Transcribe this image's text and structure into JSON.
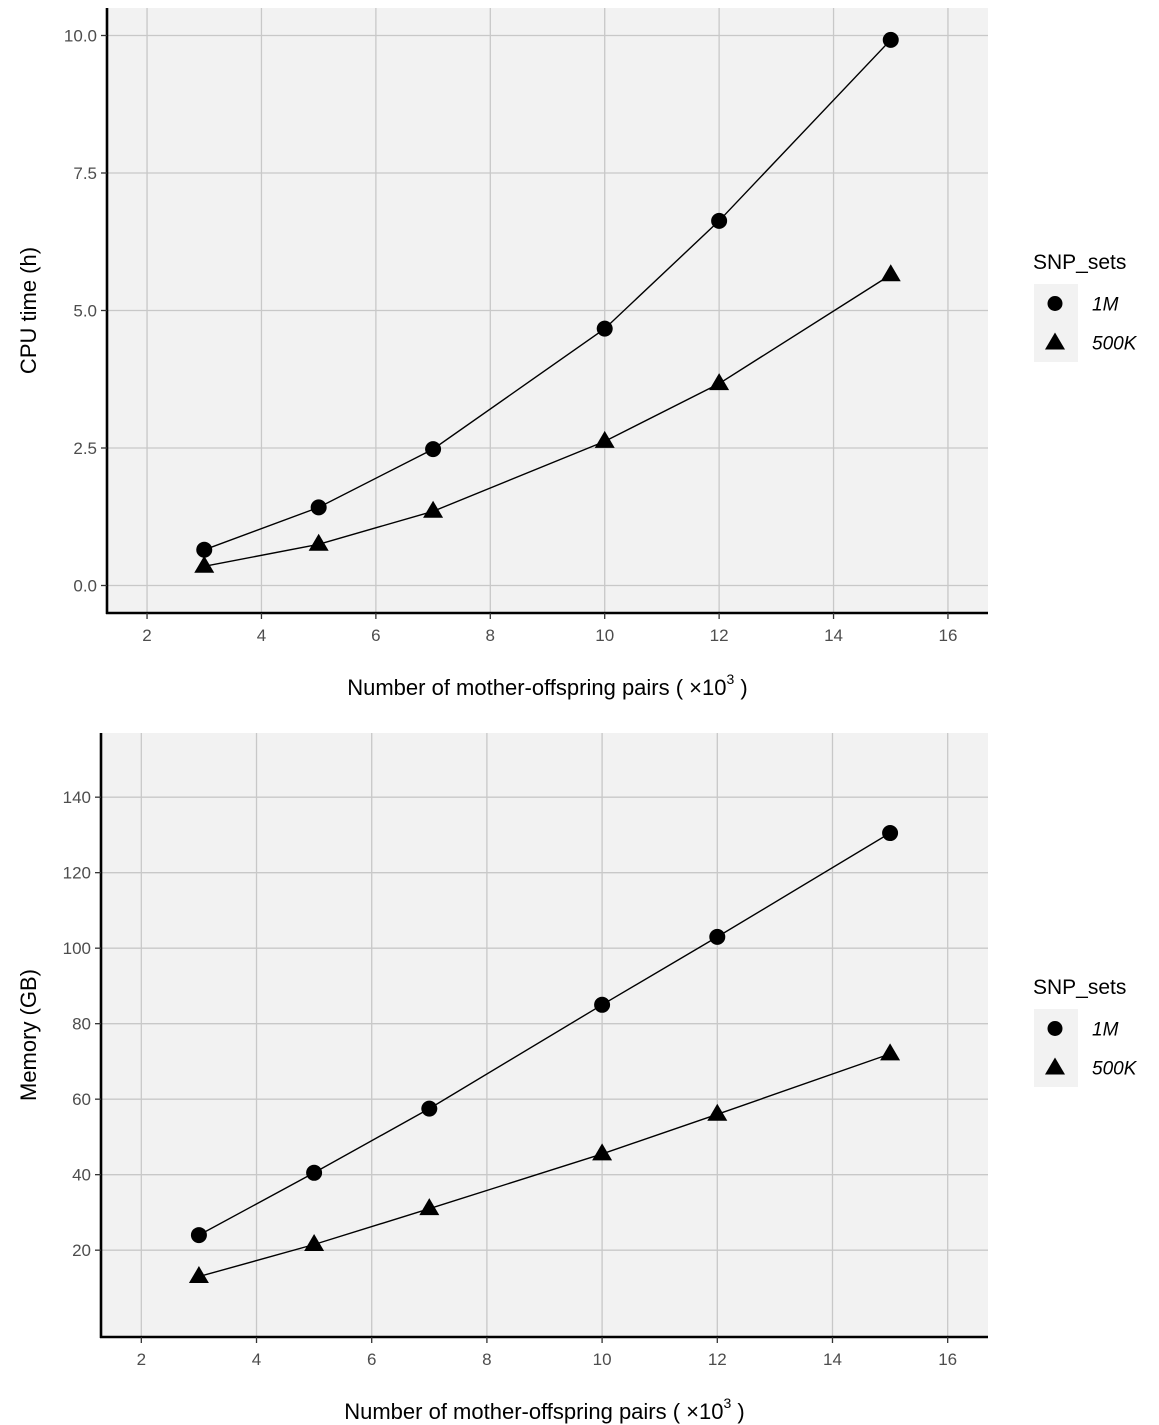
{
  "chart_data": [
    {
      "type": "line",
      "xlabel": "Number of mother-offspring pairs ( ×10",
      "xlabel_exponent": "3",
      "xlabel_suffix": " )",
      "ylabel": "CPU time (h)",
      "x": [
        3,
        5,
        7,
        10,
        12,
        15
      ],
      "xlim": [
        1.3,
        16.7
      ],
      "ylim": [
        -0.5,
        10.5
      ],
      "xticks": [
        2,
        4,
        6,
        8,
        10,
        12,
        14,
        16
      ],
      "yticks": [
        0.0,
        2.5,
        5.0,
        7.5,
        10.0
      ],
      "ytick_labels": [
        "0.0",
        "2.5",
        "5.0",
        "7.5",
        "10.0"
      ],
      "grid": true,
      "legend_position": "right",
      "legend_title": "SNP_sets",
      "series": [
        {
          "name": "1M",
          "marker": "circle",
          "values": [
            0.65,
            1.42,
            2.48,
            4.67,
            6.63,
            9.92
          ]
        },
        {
          "name": "500K",
          "marker": "triangle",
          "values": [
            0.35,
            0.75,
            1.35,
            2.62,
            3.67,
            5.65
          ]
        }
      ]
    },
    {
      "type": "line",
      "xlabel": "Number of mother-offspring pairs ( ×10",
      "xlabel_exponent": "3",
      "xlabel_suffix": " )",
      "ylabel": "Memory (GB)",
      "x": [
        3,
        5,
        7,
        10,
        12,
        15
      ],
      "xlim": [
        1.3,
        16.7
      ],
      "ylim": [
        -3,
        157
      ],
      "xticks": [
        2,
        4,
        6,
        8,
        10,
        12,
        14,
        16
      ],
      "yticks": [
        20,
        40,
        60,
        80,
        100,
        120,
        140
      ],
      "ytick_labels": [
        "20",
        "40",
        "60",
        "80",
        "100",
        "120",
        "140"
      ],
      "grid": true,
      "legend_position": "right",
      "legend_title": "SNP_sets",
      "series": [
        {
          "name": "1M",
          "marker": "circle",
          "values": [
            24,
            40.5,
            57.5,
            85,
            103,
            130.5
          ]
        },
        {
          "name": "500K",
          "marker": "triangle",
          "values": [
            13,
            21.5,
            31,
            45.5,
            56,
            72
          ]
        }
      ]
    }
  ],
  "colors": {
    "panel_background": "#f2f2f2",
    "grid": "#c8c8c8",
    "axis": "#000000",
    "marks": "#000000",
    "legend_key_background": "#f2f2f2"
  }
}
